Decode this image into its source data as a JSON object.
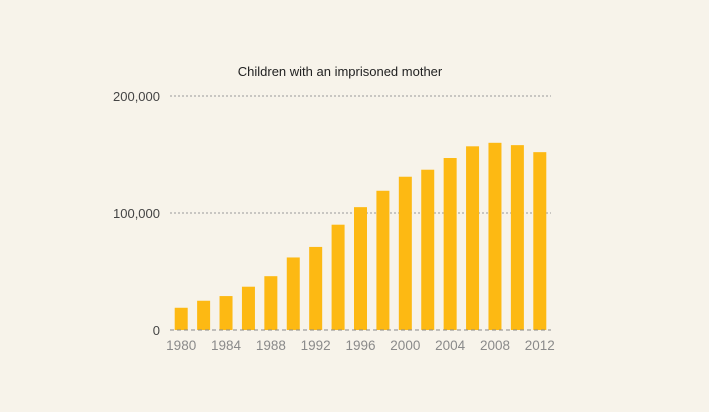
{
  "chart_data": {
    "type": "bar",
    "title": "Children with an imprisoned mother",
    "xlabel": "",
    "ylabel": "",
    "categories": [
      "1980",
      "1982",
      "1984",
      "1986",
      "1988",
      "1990",
      "1992",
      "1994",
      "1996",
      "1998",
      "2000",
      "2002",
      "2004",
      "2006",
      "2008",
      "2010",
      "2012"
    ],
    "values": [
      19000,
      25000,
      29000,
      37000,
      46000,
      62000,
      71000,
      90000,
      105000,
      119000,
      131000,
      137000,
      147000,
      157000,
      160000,
      158000,
      152000
    ],
    "ylim": [
      0,
      200000
    ],
    "yticks": [
      0,
      100000,
      200000
    ],
    "ytick_labels": [
      "0",
      "100,000",
      "200,000"
    ],
    "xtick_labels": [
      "1980",
      "1984",
      "1988",
      "1992",
      "1996",
      "2000",
      "2004",
      "2008",
      "2012"
    ],
    "grid": true,
    "legend": "none",
    "colors": {
      "bar": "#fdb913",
      "background": "#f7f3ea",
      "grid": "#9a9a9a",
      "title": "#222222",
      "tick_label": "#8a8a8a"
    }
  }
}
